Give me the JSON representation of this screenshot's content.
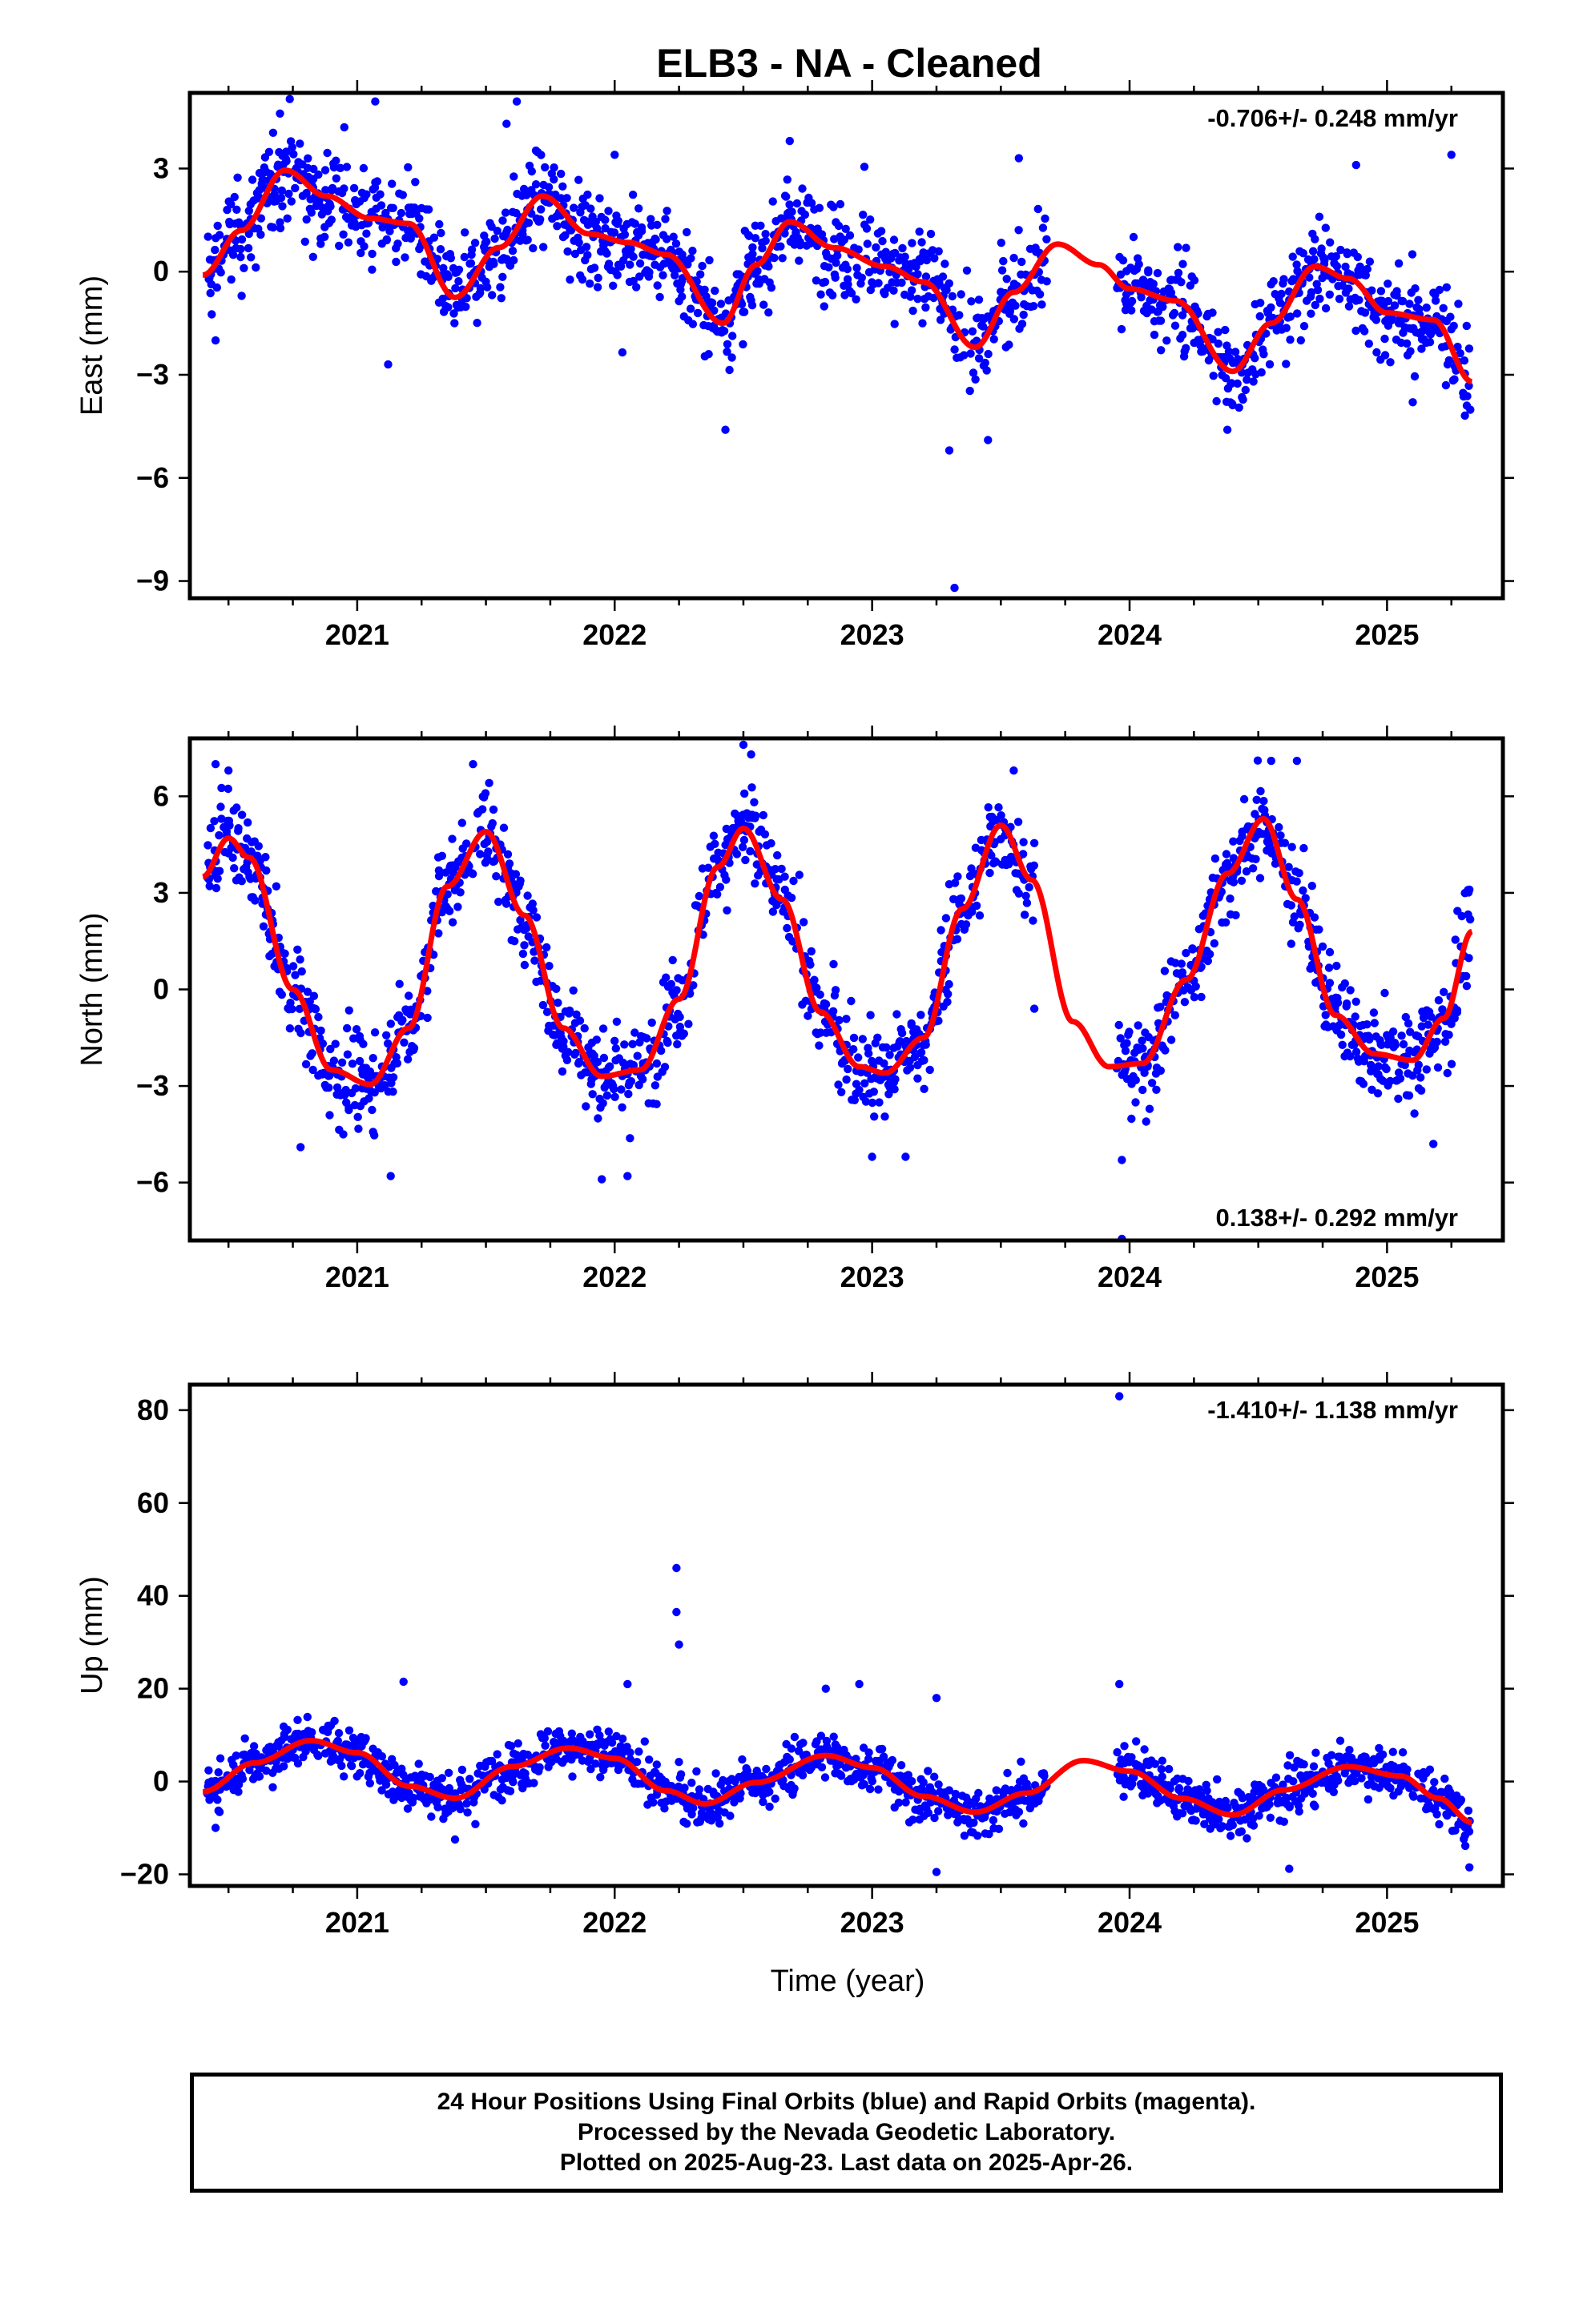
{
  "page": {
    "title": "ELB3  - NA - Cleaned",
    "xlabel": "Time (year)"
  },
  "chart_data": [
    {
      "type": "scatter",
      "ylabel": "East (mm)",
      "xlim": [
        2020.35,
        2025.45
      ],
      "ylim": [
        -9.5,
        5.2
      ],
      "x_ticks": [
        2021,
        2022,
        2023,
        2024,
        2025
      ],
      "y_ticks": [
        3,
        0,
        -3,
        -6,
        -9
      ],
      "y_tick_labels": [
        "3",
        "0",
        "−3",
        "−6",
        "−9"
      ],
      "annotation": "-0.706+/- 0.248 mm/yr",
      "annotation_position": "top-right",
      "rate_mm_per_yr": -0.706,
      "rate_sigma": 0.248,
      "series": [
        {
          "kind": "points",
          "color": "#0000ff"
        },
        {
          "kind": "line",
          "color": "#ff0000"
        }
      ],
      "gap": [
        2023.68,
        2023.95
      ],
      "observed_points": [
        [
          2020.7,
          4.6
        ],
        [
          2020.95,
          4.2
        ],
        [
          2021.07,
          4.95
        ],
        [
          2021.62,
          4.95
        ],
        [
          2021.58,
          4.3
        ],
        [
          2022.0,
          3.4
        ],
        [
          2022.68,
          3.8
        ],
        [
          2022.97,
          3.05
        ],
        [
          2023.57,
          3.3
        ],
        [
          2024.88,
          3.1
        ],
        [
          2025.25,
          3.4
        ],
        [
          2022.43,
          -4.6
        ],
        [
          2023.3,
          -5.2
        ],
        [
          2023.32,
          -9.2
        ],
        [
          2023.45,
          -4.9
        ],
        [
          2024.38,
          -4.6
        ],
        [
          2025.1,
          -3.8
        ],
        [
          2021.12,
          -2.7
        ],
        [
          2020.45,
          -2.0
        ],
        [
          2022.03,
          -2.35
        ]
      ],
      "fit_line": [
        [
          2020.4,
          -0.1
        ],
        [
          2020.55,
          1.2
        ],
        [
          2020.72,
          2.95
        ],
        [
          2020.88,
          2.2
        ],
        [
          2021.05,
          1.55
        ],
        [
          2021.2,
          1.4
        ],
        [
          2021.38,
          -0.75
        ],
        [
          2021.55,
          0.7
        ],
        [
          2021.72,
          2.2
        ],
        [
          2021.9,
          1.1
        ],
        [
          2022.05,
          0.85
        ],
        [
          2022.2,
          0.5
        ],
        [
          2022.42,
          -1.5
        ],
        [
          2022.55,
          0.2
        ],
        [
          2022.68,
          1.45
        ],
        [
          2022.85,
          0.7
        ],
        [
          2023.05,
          0.15
        ],
        [
          2023.2,
          -0.3
        ],
        [
          2023.4,
          -2.2
        ],
        [
          2023.55,
          -0.6
        ],
        [
          2023.72,
          0.8
        ],
        [
          2023.88,
          0.2
        ],
        [
          2024.0,
          -0.5
        ],
        [
          2024.18,
          -0.85
        ],
        [
          2024.4,
          -2.9
        ],
        [
          2024.55,
          -1.5
        ],
        [
          2024.72,
          0.15
        ],
        [
          2024.85,
          -0.2
        ],
        [
          2025.0,
          -1.2
        ],
        [
          2025.18,
          -1.4
        ],
        [
          2025.33,
          -3.2
        ]
      ]
    },
    {
      "type": "scatter",
      "ylabel": "North (mm)",
      "xlim": [
        2020.35,
        2025.45
      ],
      "ylim": [
        -7.8,
        7.8
      ],
      "x_ticks": [
        2021,
        2022,
        2023,
        2024,
        2025
      ],
      "y_ticks": [
        6,
        3,
        0,
        -3,
        -6
      ],
      "y_tick_labels": [
        "6",
        "3",
        "0",
        "−3",
        "−6"
      ],
      "annotation": "0.138+/- 0.292 mm/yr",
      "annotation_position": "bottom-right",
      "rate_mm_per_yr": 0.138,
      "rate_sigma": 0.292,
      "series": [
        {
          "kind": "points",
          "color": "#0000ff"
        },
        {
          "kind": "line",
          "color": "#ff0000"
        }
      ],
      "gap": [
        2023.63,
        2023.95
      ],
      "observed_points": [
        [
          2020.45,
          7.0
        ],
        [
          2020.5,
          6.8
        ],
        [
          2021.45,
          7.0
        ],
        [
          2022.5,
          7.6
        ],
        [
          2022.53,
          7.3
        ],
        [
          2023.55,
          6.8
        ],
        [
          2024.55,
          7.1
        ],
        [
          2024.65,
          7.1
        ],
        [
          2020.78,
          -4.9
        ],
        [
          2021.13,
          -5.8
        ],
        [
          2021.95,
          -5.9
        ],
        [
          2022.05,
          -5.8
        ],
        [
          2023.0,
          -5.2
        ],
        [
          2023.13,
          -5.2
        ],
        [
          2023.97,
          -5.3
        ],
        [
          2023.97,
          -7.75
        ],
        [
          2025.18,
          -4.8
        ],
        [
          2023.63,
          -0.6
        ],
        [
          2025.32,
          3.1
        ]
      ],
      "fit_line": [
        [
          2020.4,
          3.5
        ],
        [
          2020.5,
          4.7
        ],
        [
          2020.58,
          4.1
        ],
        [
          2020.75,
          0.0
        ],
        [
          2020.9,
          -2.5
        ],
        [
          2021.05,
          -2.95
        ],
        [
          2021.2,
          -1.2
        ],
        [
          2021.35,
          3.2
        ],
        [
          2021.5,
          4.9
        ],
        [
          2021.65,
          2.3
        ],
        [
          2021.8,
          -1.2
        ],
        [
          2021.95,
          -2.7
        ],
        [
          2022.1,
          -2.5
        ],
        [
          2022.25,
          -0.3
        ],
        [
          2022.4,
          3.8
        ],
        [
          2022.5,
          5.0
        ],
        [
          2022.65,
          2.8
        ],
        [
          2022.8,
          -0.7
        ],
        [
          2022.95,
          -2.4
        ],
        [
          2023.05,
          -2.6
        ],
        [
          2023.2,
          -1.5
        ],
        [
          2023.35,
          2.5
        ],
        [
          2023.5,
          5.1
        ],
        [
          2023.62,
          3.4
        ],
        [
          2023.78,
          -1.0
        ],
        [
          2023.92,
          -2.4
        ],
        [
          2024.05,
          -2.3
        ],
        [
          2024.22,
          0.3
        ],
        [
          2024.38,
          3.6
        ],
        [
          2024.52,
          5.3
        ],
        [
          2024.65,
          2.8
        ],
        [
          2024.8,
          -0.8
        ],
        [
          2024.95,
          -2.0
        ],
        [
          2025.1,
          -2.2
        ],
        [
          2025.22,
          -0.9
        ],
        [
          2025.33,
          1.8
        ]
      ]
    },
    {
      "type": "scatter",
      "ylabel": "Up (mm)",
      "xlim": [
        2020.35,
        2025.45
      ],
      "ylim": [
        -22.5,
        85.5
      ],
      "x_ticks": [
        2021,
        2022,
        2023,
        2024,
        2025
      ],
      "y_ticks": [
        80,
        60,
        40,
        20,
        0,
        -20
      ],
      "y_tick_labels": [
        "80",
        "60",
        "40",
        "20",
        "0",
        "−20"
      ],
      "annotation": "-1.410+/- 1.138 mm/yr",
      "annotation_position": "top-right",
      "rate_mm_per_yr": -1.41,
      "rate_sigma": 1.138,
      "series": [
        {
          "kind": "points",
          "color": "#0000ff"
        },
        {
          "kind": "line",
          "color": "#ff0000"
        }
      ],
      "gap": [
        2023.68,
        2023.95
      ],
      "observed_points": [
        [
          2023.96,
          83.0
        ],
        [
          2022.24,
          46.0
        ],
        [
          2022.24,
          36.5
        ],
        [
          2022.25,
          29.5
        ],
        [
          2021.18,
          21.5
        ],
        [
          2023.96,
          21.0
        ],
        [
          2023.25,
          18.0
        ],
        [
          2022.05,
          21.0
        ],
        [
          2022.82,
          20.0
        ],
        [
          2022.95,
          21.0
        ],
        [
          2023.25,
          -19.5
        ],
        [
          2024.62,
          -18.8
        ],
        [
          2025.32,
          -18.5
        ],
        [
          2021.38,
          -12.5
        ],
        [
          2020.45,
          -10.0
        ]
      ],
      "fit_line": [
        [
          2020.4,
          -2.2
        ],
        [
          2020.6,
          4.0
        ],
        [
          2020.82,
          8.8
        ],
        [
          2021.0,
          6.2
        ],
        [
          2021.2,
          -1.0
        ],
        [
          2021.38,
          -3.6
        ],
        [
          2021.6,
          3.2
        ],
        [
          2021.82,
          7.2
        ],
        [
          2022.0,
          5.0
        ],
        [
          2022.2,
          -2.0
        ],
        [
          2022.35,
          -4.8
        ],
        [
          2022.55,
          -0.2
        ],
        [
          2022.82,
          5.6
        ],
        [
          2023.0,
          3.0
        ],
        [
          2023.2,
          -3.2
        ],
        [
          2023.4,
          -6.6
        ],
        [
          2023.6,
          -2.5
        ],
        [
          2023.82,
          4.5
        ],
        [
          2024.0,
          2.2
        ],
        [
          2024.2,
          -3.6
        ],
        [
          2024.4,
          -7.2
        ],
        [
          2024.6,
          -1.8
        ],
        [
          2024.85,
          3.2
        ],
        [
          2025.05,
          1.2
        ],
        [
          2025.2,
          -3.6
        ],
        [
          2025.33,
          -8.8
        ]
      ]
    }
  ],
  "footer": {
    "line1": "24 Hour Positions Using Final Orbits (blue) and Rapid Orbits (magenta).",
    "line2": "Processed by the Nevada Geodetic Laboratory.",
    "line3": "Plotted on 2025-Aug-23. Last data on 2025-Apr-26."
  }
}
